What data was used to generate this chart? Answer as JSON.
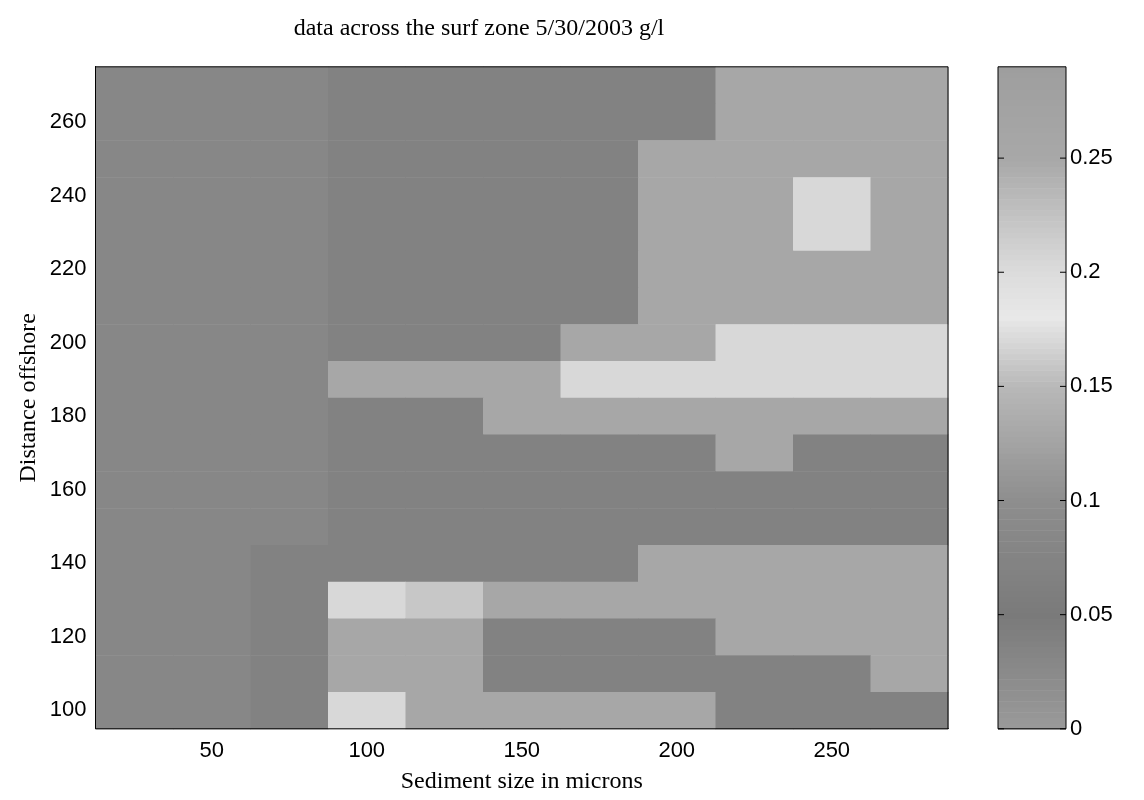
{
  "chart_data": {
    "type": "heatmap",
    "title": "data across the surf zone 5/30/2003 g/l",
    "xlabel": "Sediment size in microns",
    "ylabel": "Distance offshore",
    "categories": [
      null,
      "50",
      null,
      "100",
      null,
      "150",
      null,
      "200",
      null,
      "250",
      null
    ],
    "y_categories": [
      null,
      "260",
      null,
      "240",
      null,
      "220",
      null,
      "200",
      null,
      "180",
      null,
      "160",
      null,
      "140",
      null,
      "120",
      null,
      "100"
    ],
    "cells": [
      [
        0.03,
        0.03,
        0.03,
        0.07,
        0.07,
        0.07,
        0.07,
        0.07,
        0.13,
        0.13,
        0.13
      ],
      [
        0.03,
        0.03,
        0.03,
        0.07,
        0.07,
        0.07,
        0.07,
        0.07,
        0.13,
        0.13,
        0.13
      ],
      [
        0.03,
        0.03,
        0.03,
        0.07,
        0.07,
        0.07,
        0.07,
        0.13,
        0.13,
        0.13,
        0.13
      ],
      [
        0.03,
        0.03,
        0.03,
        0.07,
        0.07,
        0.07,
        0.07,
        0.13,
        0.13,
        0.17,
        0.13
      ],
      [
        0.03,
        0.03,
        0.03,
        0.07,
        0.07,
        0.07,
        0.07,
        0.13,
        0.13,
        0.17,
        0.13
      ],
      [
        0.03,
        0.03,
        0.03,
        0.07,
        0.07,
        0.07,
        0.07,
        0.13,
        0.13,
        0.13,
        0.13
      ],
      [
        0.03,
        0.03,
        0.03,
        0.07,
        0.07,
        0.07,
        0.07,
        0.13,
        0.13,
        0.13,
        0.13
      ],
      [
        0.03,
        0.03,
        0.03,
        0.07,
        0.07,
        0.07,
        0.13,
        0.13,
        0.17,
        0.17,
        0.17
      ],
      [
        0.03,
        0.03,
        0.03,
        0.13,
        0.13,
        0.13,
        0.17,
        0.17,
        0.17,
        0.17,
        0.17
      ],
      [
        0.03,
        0.03,
        0.03,
        0.07,
        0.07,
        0.13,
        0.13,
        0.13,
        0.13,
        0.13,
        0.13
      ],
      [
        0.03,
        0.03,
        0.03,
        0.07,
        0.07,
        0.07,
        0.07,
        0.07,
        0.13,
        0.07,
        0.07
      ],
      [
        0.03,
        0.03,
        0.03,
        0.07,
        0.07,
        0.07,
        0.07,
        0.07,
        0.07,
        0.07,
        0.07
      ],
      [
        0.03,
        0.03,
        0.03,
        0.07,
        0.07,
        0.07,
        0.07,
        0.07,
        0.07,
        0.07,
        0.07
      ],
      [
        0.03,
        0.03,
        0.07,
        0.07,
        0.07,
        0.07,
        0.07,
        0.13,
        0.13,
        0.13,
        0.13
      ],
      [
        0.03,
        0.03,
        0.07,
        0.17,
        0.22,
        0.13,
        0.13,
        0.13,
        0.13,
        0.13,
        0.13
      ],
      [
        0.03,
        0.03,
        0.07,
        0.13,
        0.13,
        0.07,
        0.07,
        0.07,
        0.13,
        0.13,
        0.13
      ],
      [
        0.03,
        0.03,
        0.07,
        0.13,
        0.13,
        0.07,
        0.07,
        0.07,
        0.07,
        0.07,
        0.13
      ],
      [
        0.03,
        0.03,
        0.07,
        0.17,
        0.13,
        0.13,
        0.13,
        0.13,
        0.07,
        0.07,
        0.07
      ]
    ],
    "clim": [
      0,
      0.29
    ],
    "cticks": [
      0,
      0.05,
      0.1,
      0.15,
      0.2,
      0.25
    ]
  }
}
